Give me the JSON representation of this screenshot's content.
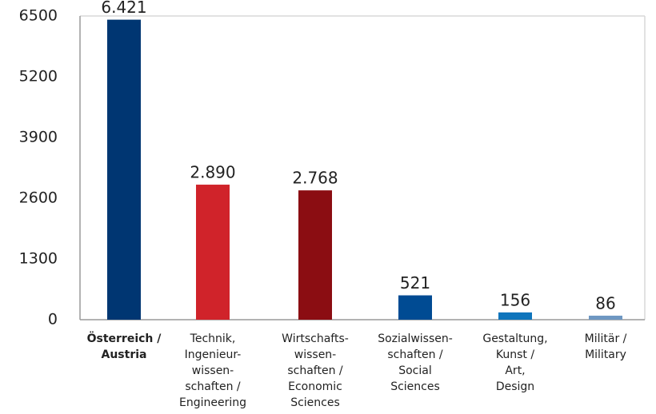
{
  "chart_data": {
    "type": "bar",
    "categories": [
      [
        "Österreich /",
        "Austria"
      ],
      [
        "Technik,",
        "Ingenieur-",
        "wissen-",
        "schaften /",
        "Engineering"
      ],
      [
        "Wirtschafts-",
        "wissen-",
        "schaften /",
        "Economic",
        "Sciences"
      ],
      [
        "Sozialwissen-",
        "schaften /",
        "Social",
        "Sciences"
      ],
      [
        "Gestaltung,",
        "Kunst /",
        "Art,",
        "Design"
      ],
      [
        "Militär /",
        "Military"
      ]
    ],
    "values": [
      6421,
      2890,
      2768,
      521,
      156,
      86
    ],
    "value_labels": [
      "6.421",
      "2.890",
      "2.768",
      "521",
      "156",
      "86"
    ],
    "colors": [
      "#003672",
      "#d0232a",
      "#8b0d12",
      "#004b93",
      "#0f75bc",
      "#6e97c2"
    ],
    "ylim": [
      0,
      6500
    ],
    "yticks": [
      0,
      1300,
      2600,
      3900,
      5200,
      6500
    ],
    "grid": false
  }
}
